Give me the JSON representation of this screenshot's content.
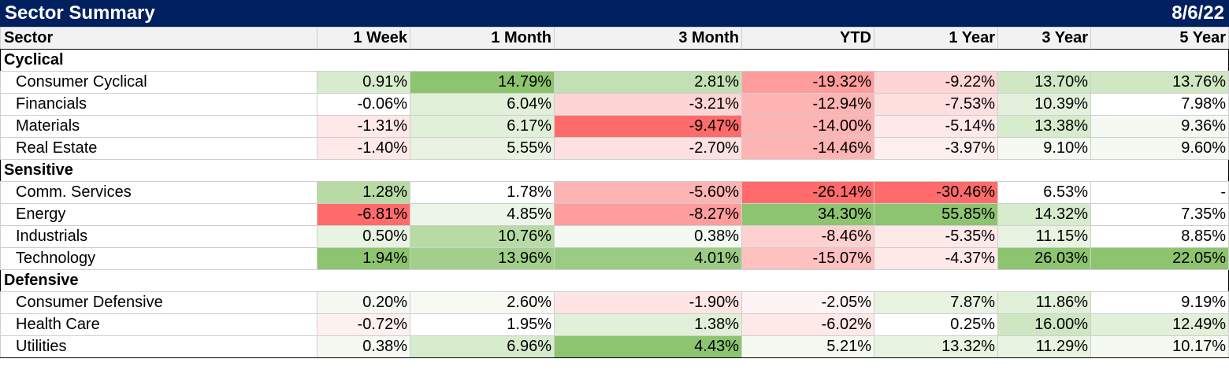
{
  "title": "Sector Summary",
  "date": "8/6/22",
  "chart_data": {
    "type": "table",
    "columns": [
      "Sector",
      "1 Week",
      "1 Month",
      "3 Month",
      "YTD",
      "1 Year",
      "3 Year",
      "5 Year"
    ],
    "groups": [
      {
        "name": "Cyclical",
        "rows": [
          {
            "sector": "Consumer Cyclical",
            "values": [
              "0.91%",
              "14.79%",
              "2.81%",
              "-19.32%",
              "-9.22%",
              "13.70%",
              "13.76%"
            ],
            "colors": [
              "#d7ebcd",
              "#8dc470",
              "#c2e0b3",
              "#ff9c9c",
              "#ffd4d4",
              "#d0e7c4",
              "#d0e7c4"
            ]
          },
          {
            "sector": "Financials",
            "values": [
              "-0.06%",
              "6.04%",
              "-3.21%",
              "-12.94%",
              "-7.53%",
              "10.39%",
              "7.98%"
            ],
            "colors": [
              "#ffffff",
              "#e1f0d9",
              "#ffd4d4",
              "#ffb4b4",
              "#ffdede",
              "#e3f1dc",
              "#ffffff"
            ]
          },
          {
            "sector": "Materials",
            "values": [
              "-1.31%",
              "6.17%",
              "-9.47%",
              "-14.00%",
              "-5.14%",
              "13.38%",
              "9.36%"
            ],
            "colors": [
              "#ffe8e8",
              "#e1f0d9",
              "#ff6b6b",
              "#ffb4b4",
              "#ffe8e8",
              "#d7ebcd",
              "#f4f9f1"
            ]
          },
          {
            "sector": "Real Estate",
            "values": [
              "-1.40%",
              "5.55%",
              "-2.70%",
              "-14.46%",
              "-3.97%",
              "9.10%",
              "9.60%"
            ],
            "colors": [
              "#ffe8e8",
              "#e8f3e2",
              "#ffe0e0",
              "#ffb4b4",
              "#ffeeee",
              "#f4f9f1",
              "#f4f9f1"
            ]
          }
        ]
      },
      {
        "name": "Sensitive",
        "rows": [
          {
            "sector": "Comm. Services",
            "values": [
              "1.28%",
              "1.78%",
              "-5.60%",
              "-26.14%",
              "-30.46%",
              "6.53%",
              "-"
            ],
            "colors": [
              "#b8dba6",
              "#ffffff",
              "#ffb4b4",
              "#ff6b6b",
              "#ff6b6b",
              "#ffffff",
              "#ffffff"
            ]
          },
          {
            "sector": "Energy",
            "values": [
              "-6.81%",
              "4.85%",
              "-8.27%",
              "34.30%",
              "55.85%",
              "14.32%",
              "7.35%"
            ],
            "colors": [
              "#ff6b6b",
              "#ecf5e7",
              "#ff9c9c",
              "#8dc470",
              "#8dc470",
              "#d7ebcd",
              "#ffffff"
            ]
          },
          {
            "sector": "Industrials",
            "values": [
              "0.50%",
              "10.76%",
              "0.38%",
              "-8.46%",
              "-5.35%",
              "11.15%",
              "8.85%"
            ],
            "colors": [
              "#e8f3e2",
              "#b8dba6",
              "#f4f9f1",
              "#ffd0d0",
              "#ffe8e8",
              "#e8f3e2",
              "#ffffff"
            ]
          },
          {
            "sector": "Technology",
            "values": [
              "1.94%",
              "13.96%",
              "4.01%",
              "-15.07%",
              "-4.37%",
              "26.03%",
              "22.05%"
            ],
            "colors": [
              "#8dc470",
              "#a2cf8b",
              "#9ccc84",
              "#ffc0c0",
              "#ffe8e8",
              "#8dc470",
              "#8dc470"
            ]
          }
        ]
      },
      {
        "name": "Defensive",
        "rows": [
          {
            "sector": "Consumer Defensive",
            "values": [
              "0.20%",
              "2.60%",
              "-1.90%",
              "-2.05%",
              "7.87%",
              "11.86%",
              "9.19%"
            ],
            "colors": [
              "#f4f9f1",
              "#f6faf3",
              "#ffe4e4",
              "#fff4f4",
              "#e8f3e2",
              "#e1f0d9",
              "#ffffff"
            ]
          },
          {
            "sector": "Health Care",
            "values": [
              "-0.72%",
              "1.95%",
              "1.38%",
              "-6.02%",
              "0.25%",
              "16.00%",
              "12.49%"
            ],
            "colors": [
              "#fff0f0",
              "#ffffff",
              "#e1f0d9",
              "#ffe8e8",
              "#ffffff",
              "#cfe6c2",
              "#e1f0d9"
            ]
          },
          {
            "sector": "Utilities",
            "values": [
              "0.38%",
              "6.96%",
              "4.43%",
              "5.21%",
              "13.32%",
              "11.29%",
              "10.17%"
            ],
            "colors": [
              "#f4f9f1",
              "#d7ebcd",
              "#8dc470",
              "#f4f9f1",
              "#e8f3e2",
              "#e8f3e2",
              "#f4f9f1"
            ]
          }
        ]
      }
    ]
  }
}
